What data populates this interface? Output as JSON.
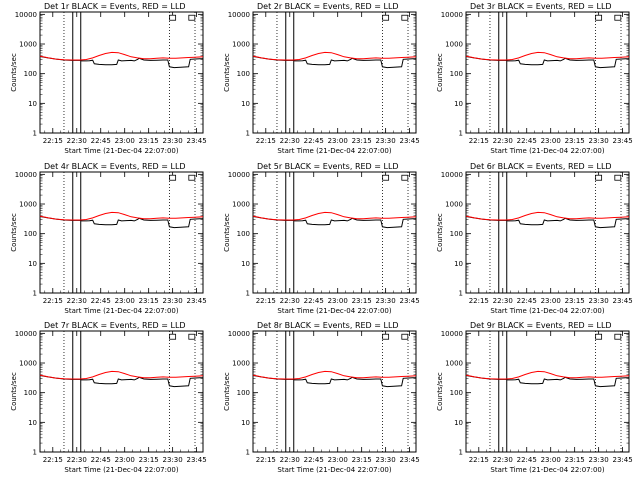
{
  "chart_data": [
    {
      "type": "line",
      "title": "Det 1r BLACK = Events, RED = LLD"
    },
    {
      "type": "line",
      "title": "Det 2r BLACK = Events, RED = LLD"
    },
    {
      "type": "line",
      "title": "Det 3r BLACK = Events, RED = LLD"
    },
    {
      "type": "line",
      "title": "Det 4r BLACK = Events, RED = LLD"
    },
    {
      "type": "line",
      "title": "Det 5r BLACK = Events, RED = LLD"
    },
    {
      "type": "line",
      "title": "Det 6r BLACK = Events, RED = LLD"
    },
    {
      "type": "line",
      "title": "Det 7r BLACK = Events, RED = LLD"
    },
    {
      "type": "line",
      "title": "Det 8r BLACK = Events, RED = LLD"
    },
    {
      "type": "line",
      "title": "Det 9r BLACK = Events, RED = LLD"
    }
  ],
  "shared": {
    "xlabel": "Start Time (21-Dec-04 22:07:00)",
    "ylabel": "Counts/sec",
    "x_tick_labels": [
      "22:15",
      "22:30",
      "22:45",
      "23:00",
      "23:15",
      "23:30",
      "23:45"
    ],
    "x_tick_minutes": [
      15,
      30,
      45,
      60,
      75,
      90,
      105
    ],
    "xlim_minutes": [
      7,
      109
    ],
    "y_tick_labels": [
      "1",
      "10",
      "100",
      "1000",
      "10000"
    ],
    "y_tick_values": [
      1,
      10,
      100,
      1000,
      10000
    ],
    "ylim": [
      1,
      12000
    ],
    "log_y": true,
    "colors": {
      "events": "#000000",
      "lld": "#ff0000"
    },
    "events": {
      "x": [
        7,
        12,
        17,
        22,
        27,
        32,
        33,
        36,
        38,
        40,
        41,
        44,
        48,
        52,
        55,
        56,
        58,
        61,
        64,
        66,
        68,
        69,
        72,
        76,
        80,
        84,
        87,
        88,
        91,
        95,
        100,
        101,
        103,
        107,
        109
      ],
      "y": [
        380,
        340,
        310,
        290,
        280,
        280,
        270,
        270,
        272,
        285,
        215,
        205,
        200,
        200,
        205,
        290,
        270,
        275,
        280,
        270,
        300,
        330,
        290,
        280,
        285,
        290,
        290,
        170,
        160,
        165,
        170,
        305,
        310,
        320,
        320
      ]
    },
    "lld": {
      "x": [
        7,
        12,
        17,
        22,
        27,
        32,
        36,
        40,
        44,
        48,
        52,
        56,
        60,
        64,
        68,
        72,
        76,
        80,
        84,
        88,
        92,
        96,
        100,
        104,
        109
      ],
      "y": [
        390,
        345,
        310,
        295,
        290,
        290,
        300,
        340,
        410,
        480,
        520,
        510,
        440,
        370,
        340,
        320,
        320,
        330,
        340,
        330,
        330,
        340,
        350,
        360,
        370
      ]
    },
    "vlines_solid": [
      27.5,
      32.5
    ],
    "vlines_dotted": [
      22,
      88,
      104
    ],
    "markers": [
      {
        "x": 90,
        "y": 8000
      },
      {
        "x": 102,
        "y": 8000
      }
    ]
  }
}
